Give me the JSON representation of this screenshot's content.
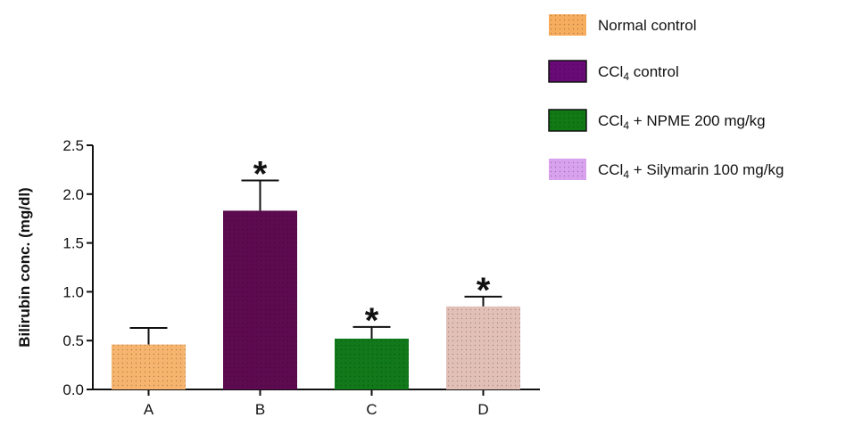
{
  "chart_data": {
    "type": "bar",
    "title": "",
    "xlabel": "",
    "ylabel": "Bilirubin conc. (mg/dl)",
    "ylim": [
      0,
      2.5
    ],
    "yticks": [
      "0.0",
      "0.5",
      "1.0",
      "1.5",
      "2.0",
      "2.5"
    ],
    "categories": [
      "A",
      "B",
      "C",
      "D"
    ],
    "values": [
      0.46,
      1.83,
      0.52,
      0.85
    ],
    "error_upper": [
      0.63,
      2.14,
      0.64,
      0.95
    ],
    "significance": [
      "",
      "*",
      "*",
      "*"
    ],
    "bar_colors": [
      "#f6b46e",
      "#5e0a50",
      "#11791a",
      "#e2c0b8"
    ],
    "grid": false,
    "legend_position": "top-right",
    "legend": [
      {
        "label": "Normal control",
        "color": "#f6ad5e"
      },
      {
        "label_prefix": "CCl",
        "subscript": "4",
        "label_suffix": " control",
        "color": "#6a0a78"
      },
      {
        "label_prefix": "CCl",
        "subscript": "4",
        "label_suffix": " + NPME 200 mg/kg",
        "color": "#117a14"
      },
      {
        "label_prefix": "CCl",
        "subscript": "4",
        "label_suffix": " + Silymarin 100 mg/kg",
        "color": "#d9a2ee"
      }
    ]
  }
}
